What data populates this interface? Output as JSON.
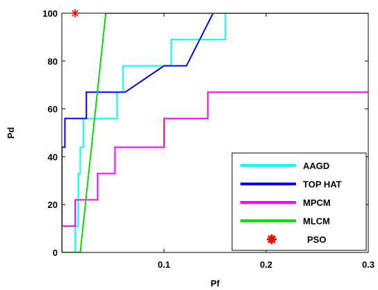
{
  "chart_data": {
    "type": "line",
    "xlabel": "Pf",
    "ylabel": "Pd",
    "xlim": [
      0,
      0.3
    ],
    "ylim": [
      0,
      100
    ],
    "x_ticks": [
      0.1,
      0.2,
      0.3
    ],
    "x_tick_labels": [
      "0.1",
      "0.2",
      "0.3"
    ],
    "y_ticks": [
      0,
      20,
      40,
      60,
      80,
      100
    ],
    "y_tick_labels": [
      "0",
      "20",
      "40",
      "60",
      "80",
      "100"
    ],
    "grid": false,
    "legend_position": "bottom-right",
    "series": [
      {
        "name": "AAGD",
        "color": "#00ffff",
        "x": [
          0,
          0.013,
          0.013,
          0.016,
          0.016,
          0.018,
          0.018,
          0.021,
          0.021,
          0.035,
          0.035,
          0.054,
          0.054,
          0.06,
          0.06,
          0.1,
          0.1,
          0.107,
          0.107,
          0.16,
          0.16,
          0.3
        ],
        "y": [
          0,
          0,
          11,
          11,
          33,
          33,
          44,
          44,
          56,
          56,
          56,
          56,
          67,
          67,
          78,
          78,
          78,
          78,
          89,
          89,
          100,
          100
        ]
      },
      {
        "name": "TOP HAT",
        "color": "#0000ff",
        "x": [
          0,
          0.0,
          0.003,
          0.003,
          0.012,
          0.012,
          0.024,
          0.024,
          0.062,
          0.1,
          0.122,
          0.148,
          0.3
        ],
        "y": [
          0,
          44,
          44,
          56,
          56,
          56,
          56,
          67,
          67,
          78,
          78,
          100,
          100
        ]
      },
      {
        "name": "MPCM",
        "color": "#ff00ff",
        "x": [
          0,
          0.0,
          0.013,
          0.013,
          0.035,
          0.035,
          0.047,
          0.047,
          0.052,
          0.052,
          0.1,
          0.1,
          0.143,
          0.143,
          0.3
        ],
        "y": [
          0,
          11,
          11,
          22,
          22,
          33,
          33,
          33,
          33,
          44,
          44,
          56,
          56,
          67,
          67
        ]
      },
      {
        "name": "MLCM",
        "color": "#00dd00",
        "x": [
          0,
          0.018,
          0.043,
          0.3
        ],
        "y": [
          0,
          0,
          100,
          100
        ]
      },
      {
        "name": "PSO",
        "color": "#ff0000",
        "marker": "*",
        "x": [
          0.013
        ],
        "y": [
          100
        ]
      }
    ]
  }
}
